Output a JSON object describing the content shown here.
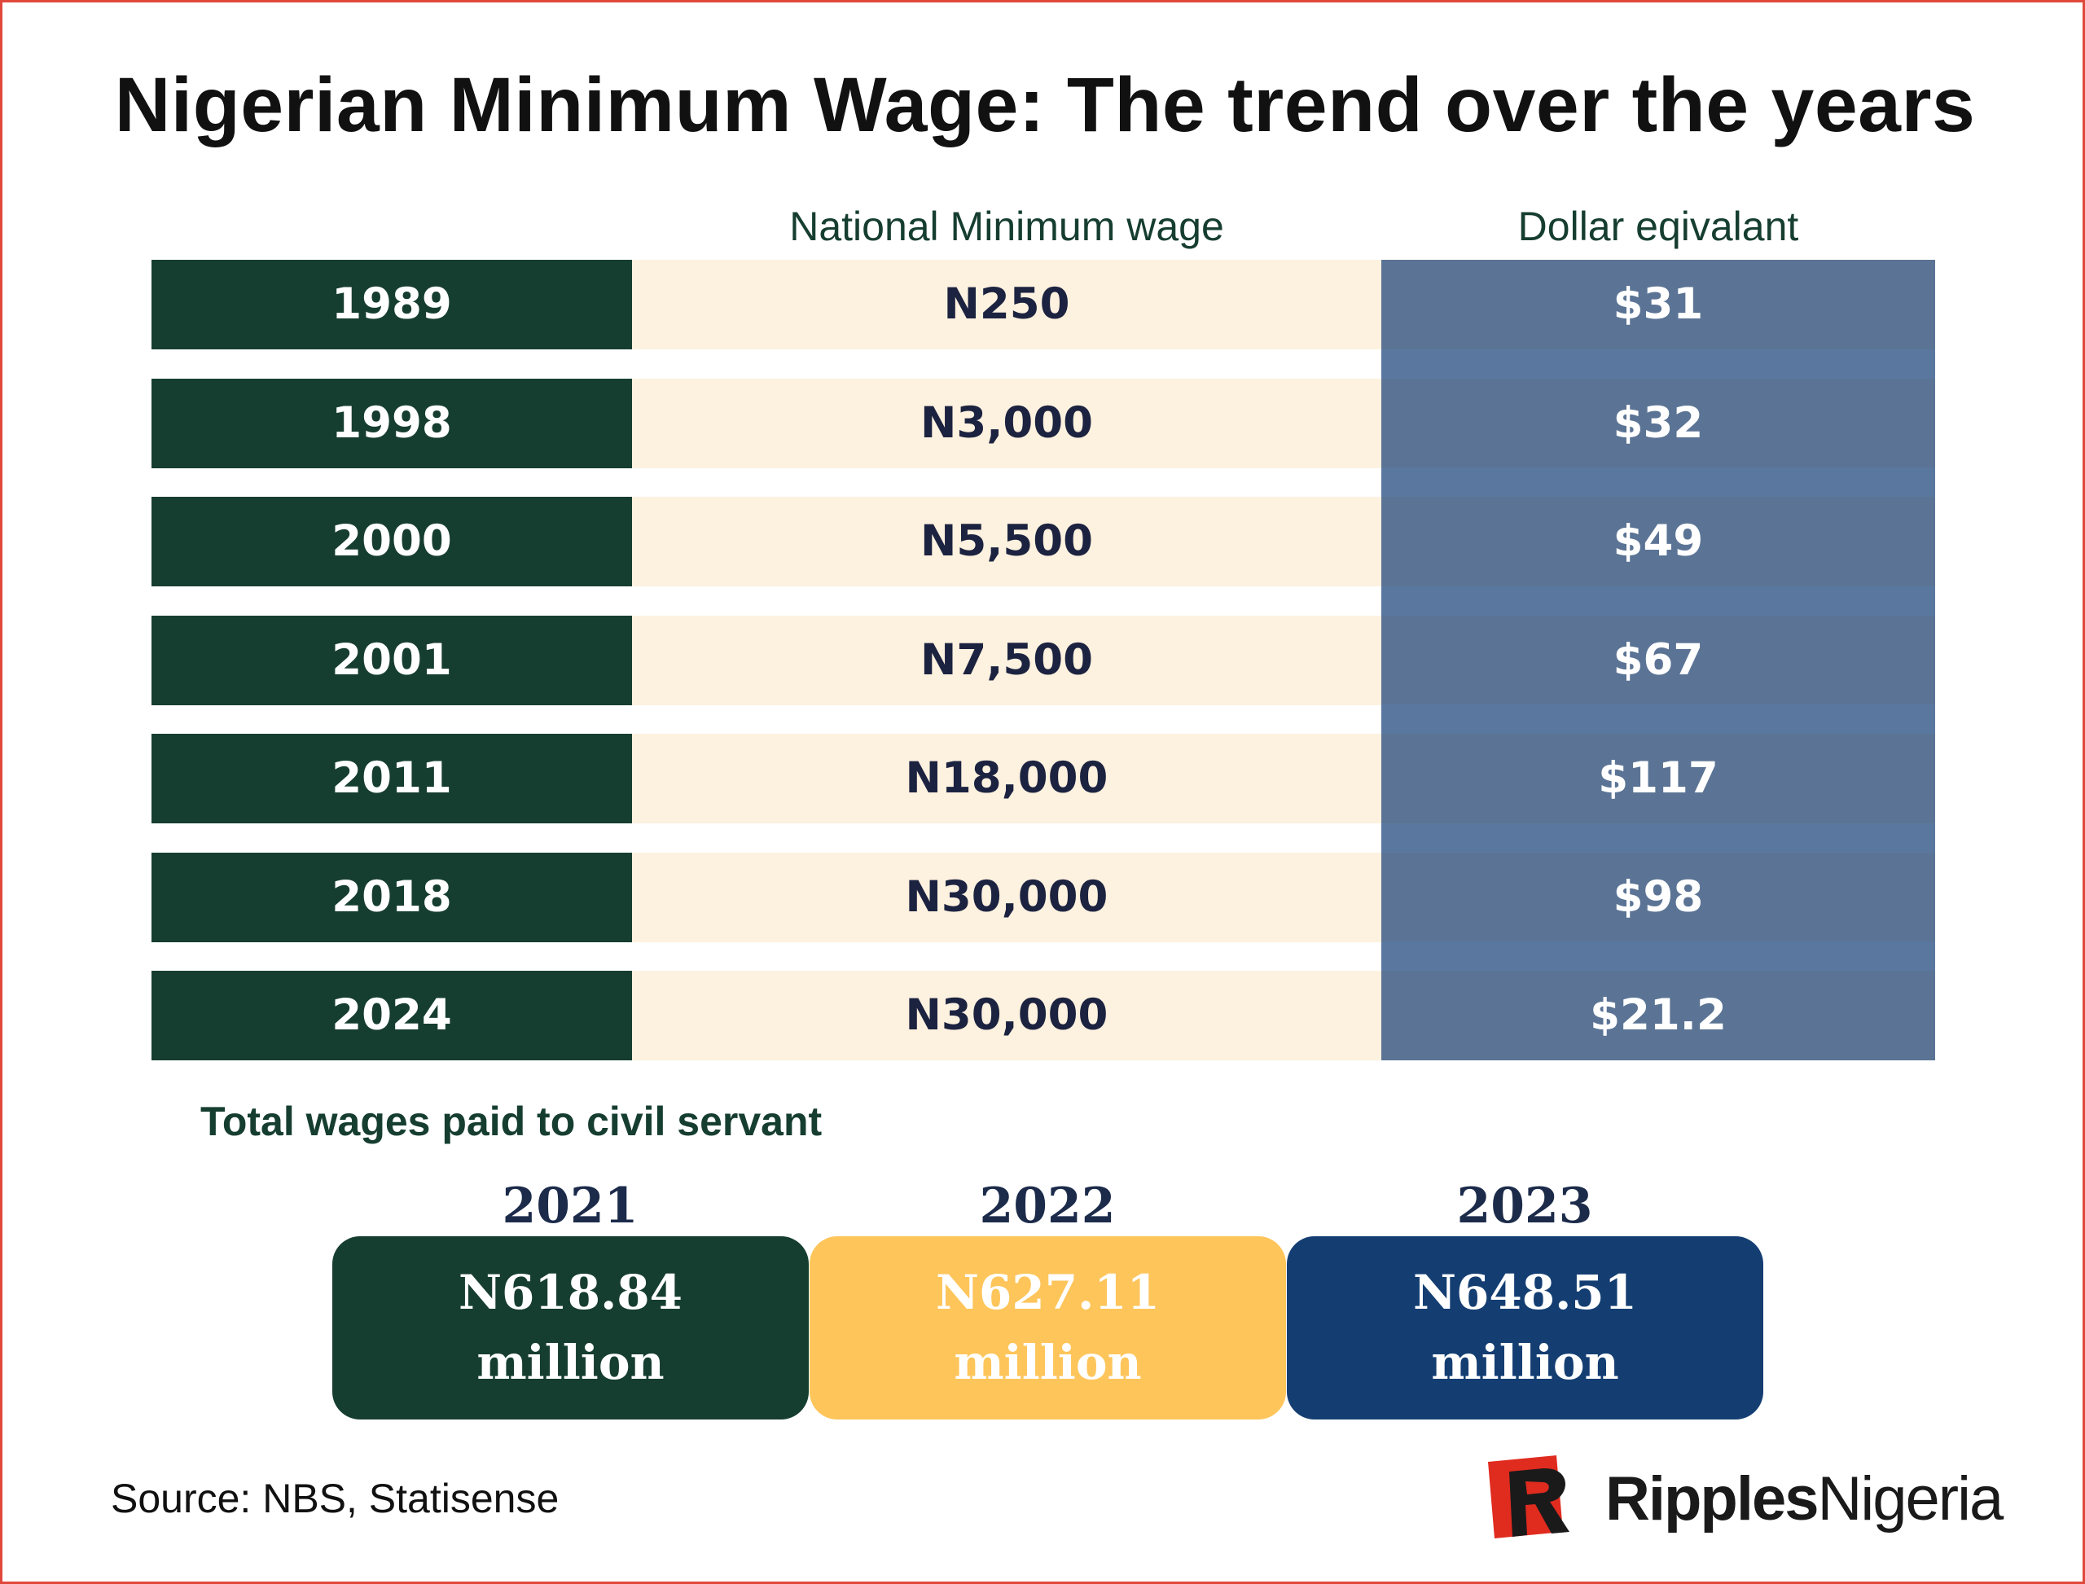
{
  "title": "Nigerian Minimum Wage: The trend over the years",
  "columns": {
    "wage": "National Minimum wage",
    "usd": "Dollar eqivalant"
  },
  "chart_data": {
    "type": "table",
    "columns": [
      "",
      "National Minimum wage",
      "Dollar eqivalant"
    ],
    "rows": [
      {
        "year": "1989",
        "wage": "N250",
        "usd": "$31"
      },
      {
        "year": "1998",
        "wage": "N3,000",
        "usd": "$32"
      },
      {
        "year": "2000",
        "wage": "N5,500",
        "usd": "$49"
      },
      {
        "year": "2001",
        "wage": "N7,500",
        "usd": "$67"
      },
      {
        "year": "2011",
        "wage": "N18,000",
        "usd": "$117"
      },
      {
        "year": "2018",
        "wage": "N30,000",
        "usd": "$98"
      },
      {
        "year": "2024",
        "wage": "N30,000",
        "usd": "$21.2"
      }
    ],
    "totals_title": "Total wages paid to civil servant",
    "totals": [
      {
        "year": "2021",
        "amount": "N618.84",
        "unit": "million"
      },
      {
        "year": "2022",
        "amount": "N627.11",
        "unit": "million"
      },
      {
        "year": "2023",
        "amount": "N648.51",
        "unit": "million"
      }
    ]
  },
  "colors": {
    "dark_green": "#163e30",
    "cream": "#fdf1df",
    "slate_blue": "#5b7495",
    "yellow": "#fec55b",
    "navy": "#143e72",
    "border_red": "#e0483c"
  },
  "source": "Source: NBS, Statisense",
  "logo": {
    "brand_bold": "Ripples",
    "brand_regular": "Nigeria",
    "icon": "ripples-r-logo-icon"
  }
}
